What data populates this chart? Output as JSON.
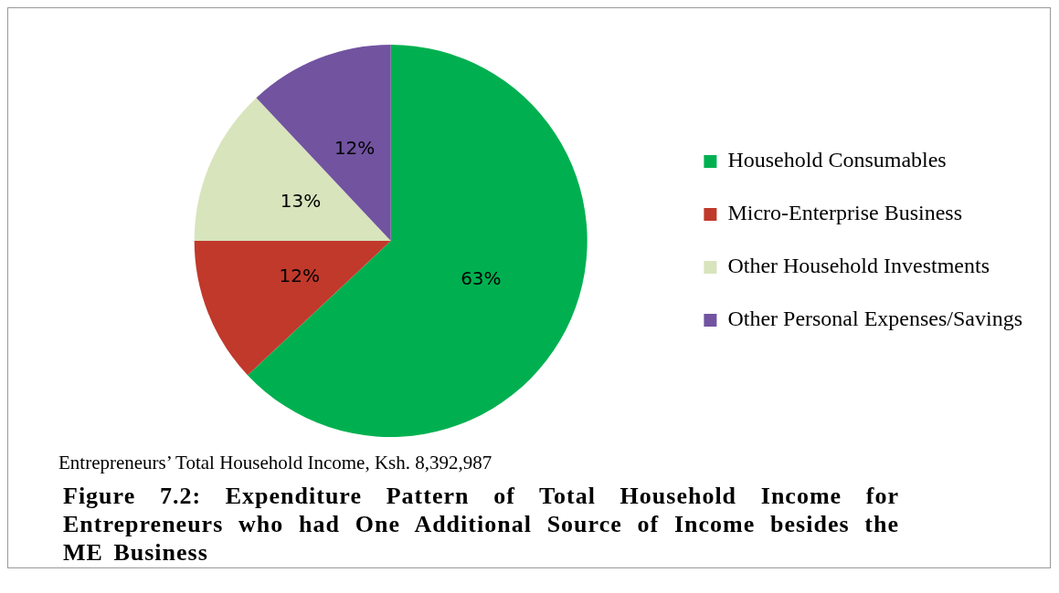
{
  "chart_data": {
    "type": "pie",
    "title": "Figure 7.2: Expenditure Pattern of Total Household Income for Entrepreneurs who had One Additional Source of Income besides the ME Business",
    "subtitle": "Entrepreneurs’ Total Household Income, Ksh. 8,392,987",
    "categories": [
      "Household Consumables",
      "Micro-Enterprise Business",
      "Other Household Investments",
      "Other Personal Expenses/Savings"
    ],
    "values": [
      63,
      12,
      13,
      12
    ],
    "colors": [
      "#00b050",
      "#c0392b",
      "#d8e4bc",
      "#7153a0"
    ],
    "value_labels": [
      "63%",
      "12%",
      "13%",
      "12%"
    ],
    "legend": "right"
  }
}
